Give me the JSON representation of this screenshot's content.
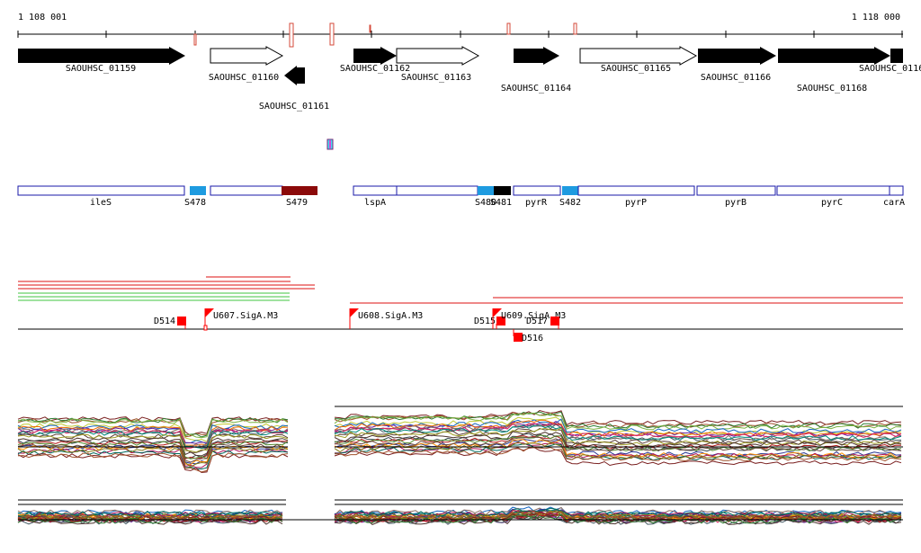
{
  "coordinates": {
    "start": "1 108 001",
    "end": "1 118 000"
  },
  "colors": {
    "gene_strong": "#000000",
    "outline_red": "#d44a3a",
    "region_blue": "#1a1aa8",
    "srna_blue": "#1e9be0",
    "srna_darkred": "#8b0a0a",
    "marker_red": "#ff0000",
    "line_green": "#3fc43f",
    "line_red": "#dd1111"
  },
  "annotation_genes": [
    {
      "label": "SAOUHSC_01159"
    },
    {
      "label": "SAOUHSC_01160"
    },
    {
      "label": "SAOUHSC_01161"
    },
    {
      "label": "SAOUHSC_01162"
    },
    {
      "label": "SAOUHSC_01163"
    },
    {
      "label": "SAOUHSC_01164"
    },
    {
      "label": "SAOUHSC_01165"
    },
    {
      "label": "SAOUHSC_01166"
    },
    {
      "label": "SAOUHSC_01168"
    },
    {
      "label": "SAOUHSC_0116"
    }
  ],
  "regions": [
    {
      "label": "ileS"
    },
    {
      "label": "S478"
    },
    {
      "label": "S479"
    },
    {
      "label": "lspA"
    },
    {
      "label": "S480"
    },
    {
      "label": "S481"
    },
    {
      "label": "pyrR"
    },
    {
      "label": "S482"
    },
    {
      "label": "pyrP"
    },
    {
      "label": "pyrB"
    },
    {
      "label": "pyrC"
    },
    {
      "label": "carA"
    }
  ],
  "features": [
    {
      "label": "D514"
    },
    {
      "label": "U607.SigA.M3"
    },
    {
      "label": "U608.SigA.M3"
    },
    {
      "label": "D515"
    },
    {
      "label": "U609.SigA.M3"
    },
    {
      "label": "D517"
    },
    {
      "label": "D516"
    }
  ]
}
